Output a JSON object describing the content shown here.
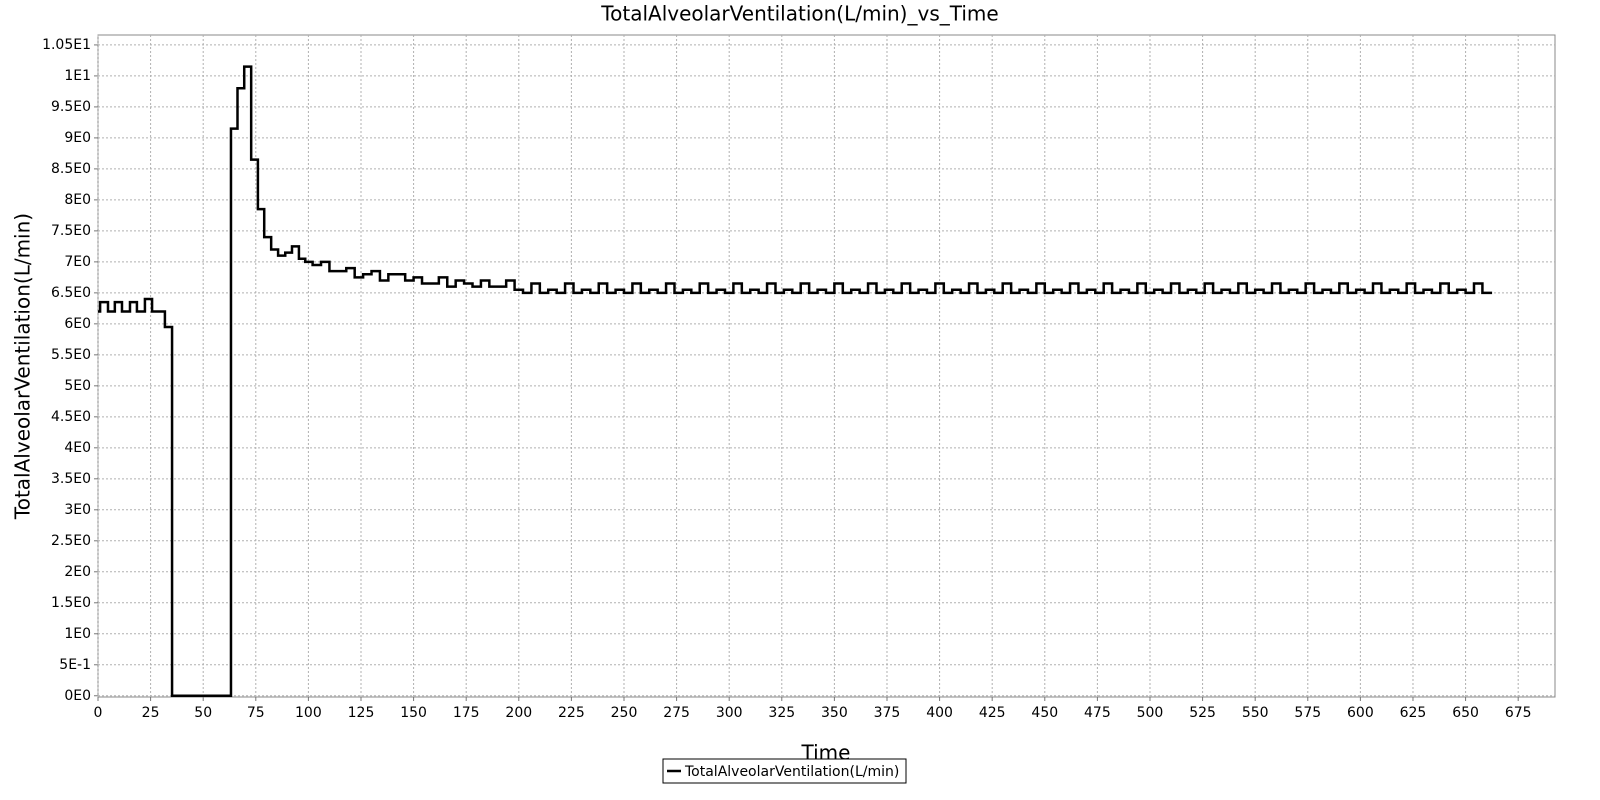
{
  "chart_data": {
    "type": "line",
    "step": "post",
    "title": "TotalAlveolarVentilation(L/min)_vs_Time",
    "x_label": "Time",
    "y_label": "TotalAlveolarVentilation(L/min)",
    "grid": true,
    "legend": "bottom",
    "xlim": [
      0,
      692.5
    ],
    "ylim": [
      -0.02,
      10.66
    ],
    "xticks": [
      0,
      25,
      50,
      75,
      100,
      125,
      150,
      175,
      200,
      225,
      250,
      275,
      300,
      325,
      350,
      375,
      400,
      425,
      450,
      475,
      500,
      525,
      550,
      575,
      600,
      625,
      650,
      675
    ],
    "yticks": [
      {
        "value": 0,
        "label": "0E0"
      },
      {
        "value": 0.5,
        "label": "5E-1"
      },
      {
        "value": 1,
        "label": "1E0"
      },
      {
        "value": 1.5,
        "label": "1.5E0"
      },
      {
        "value": 2,
        "label": "2E0"
      },
      {
        "value": 2.5,
        "label": "2.5E0"
      },
      {
        "value": 3,
        "label": "3E0"
      },
      {
        "value": 3.5,
        "label": "3.5E0"
      },
      {
        "value": 4,
        "label": "4E0"
      },
      {
        "value": 4.5,
        "label": "4.5E0"
      },
      {
        "value": 5,
        "label": "5E0"
      },
      {
        "value": 5.5,
        "label": "5.5E0"
      },
      {
        "value": 6,
        "label": "6E0"
      },
      {
        "value": 6.5,
        "label": "6.5E0"
      },
      {
        "value": 7,
        "label": "7E0"
      },
      {
        "value": 7.5,
        "label": "7.5E0"
      },
      {
        "value": 8,
        "label": "8E0"
      },
      {
        "value": 8.5,
        "label": "8.5E0"
      },
      {
        "value": 9,
        "label": "9E0"
      },
      {
        "value": 9.5,
        "label": "9.5E0"
      },
      {
        "value": 10,
        "label": "1E1"
      },
      {
        "value": 10.5,
        "label": "1.05E1"
      }
    ],
    "x": [
      0,
      1,
      4.75,
      8,
      11.4,
      15.2,
      18.5,
      22.3,
      25.7,
      31.8,
      35.2,
      63.2,
      66.3,
      69.5,
      72.8,
      76,
      79,
      82.3,
      85.6,
      89,
      92.2,
      95.5,
      98.5,
      102,
      106,
      110,
      114,
      118,
      122,
      126,
      130,
      134,
      138,
      142,
      146,
      150,
      154,
      158,
      162,
      166,
      170,
      174,
      178,
      182,
      186,
      190,
      194,
      198,
      202,
      206,
      210,
      214,
      218,
      222,
      226,
      230,
      234,
      238,
      242,
      246,
      250,
      254,
      258,
      262,
      266,
      270,
      274,
      278,
      282,
      286,
      290,
      294,
      298,
      302,
      306,
      310,
      314,
      318,
      322,
      326,
      330,
      334,
      338,
      342,
      346,
      350,
      354,
      358,
      362,
      366,
      370,
      374,
      378,
      382,
      386,
      390,
      394,
      398,
      402,
      406,
      410,
      414,
      418,
      422,
      426,
      430,
      434,
      438,
      442,
      446,
      450,
      454,
      458,
      462,
      466,
      470,
      474,
      478,
      482,
      486,
      490,
      494,
      498,
      502,
      506,
      510,
      514,
      518,
      522,
      526,
      530,
      534,
      538,
      542,
      546,
      550,
      554,
      558,
      562,
      566,
      570,
      574,
      578,
      582,
      586,
      590,
      594,
      598,
      602,
      606,
      610,
      614,
      618,
      622,
      626,
      630,
      634,
      638,
      642,
      646,
      650,
      654,
      658,
      662
    ],
    "series": [
      {
        "name": "TotalAlveolarVentilation(L/min)",
        "color": "#000000",
        "values": [
          6.2,
          6.35,
          6.2,
          6.35,
          6.2,
          6.35,
          6.2,
          6.4,
          6.2,
          5.95,
          0,
          9.15,
          9.8,
          10.15,
          8.65,
          7.85,
          7.4,
          7.2,
          7.1,
          7.15,
          7.25,
          7.05,
          7.0,
          6.95,
          7.0,
          6.85,
          6.85,
          6.9,
          6.75,
          6.8,
          6.85,
          6.7,
          6.8,
          6.8,
          6.7,
          6.75,
          6.65,
          6.65,
          6.75,
          6.6,
          6.7,
          6.65,
          6.6,
          6.7,
          6.6,
          6.6,
          6.7,
          6.55,
          6.5,
          6.65,
          6.5,
          6.55,
          6.5,
          6.65,
          6.5,
          6.55,
          6.5,
          6.65,
          6.5,
          6.55,
          6.5,
          6.65,
          6.5,
          6.55,
          6.5,
          6.65,
          6.5,
          6.55,
          6.5,
          6.65,
          6.5,
          6.55,
          6.5,
          6.65,
          6.5,
          6.55,
          6.5,
          6.65,
          6.5,
          6.55,
          6.5,
          6.65,
          6.5,
          6.55,
          6.5,
          6.65,
          6.5,
          6.55,
          6.5,
          6.65,
          6.5,
          6.55,
          6.5,
          6.65,
          6.5,
          6.55,
          6.5,
          6.65,
          6.5,
          6.55,
          6.5,
          6.65,
          6.5,
          6.55,
          6.5,
          6.65,
          6.5,
          6.55,
          6.5,
          6.65,
          6.5,
          6.55,
          6.5,
          6.65,
          6.5,
          6.55,
          6.5,
          6.65,
          6.5,
          6.55,
          6.5,
          6.65,
          6.5,
          6.55,
          6.5,
          6.65,
          6.5,
          6.55,
          6.5,
          6.65,
          6.5,
          6.55,
          6.5,
          6.65,
          6.5,
          6.55,
          6.5,
          6.65,
          6.5,
          6.55,
          6.5,
          6.65,
          6.5,
          6.55,
          6.5,
          6.65,
          6.5,
          6.55,
          6.5,
          6.65,
          6.5,
          6.55,
          6.5,
          6.65,
          6.5,
          6.55,
          6.5,
          6.65,
          6.5,
          6.55,
          6.5,
          6.65,
          6.5,
          6.48
        ]
      }
    ]
  }
}
